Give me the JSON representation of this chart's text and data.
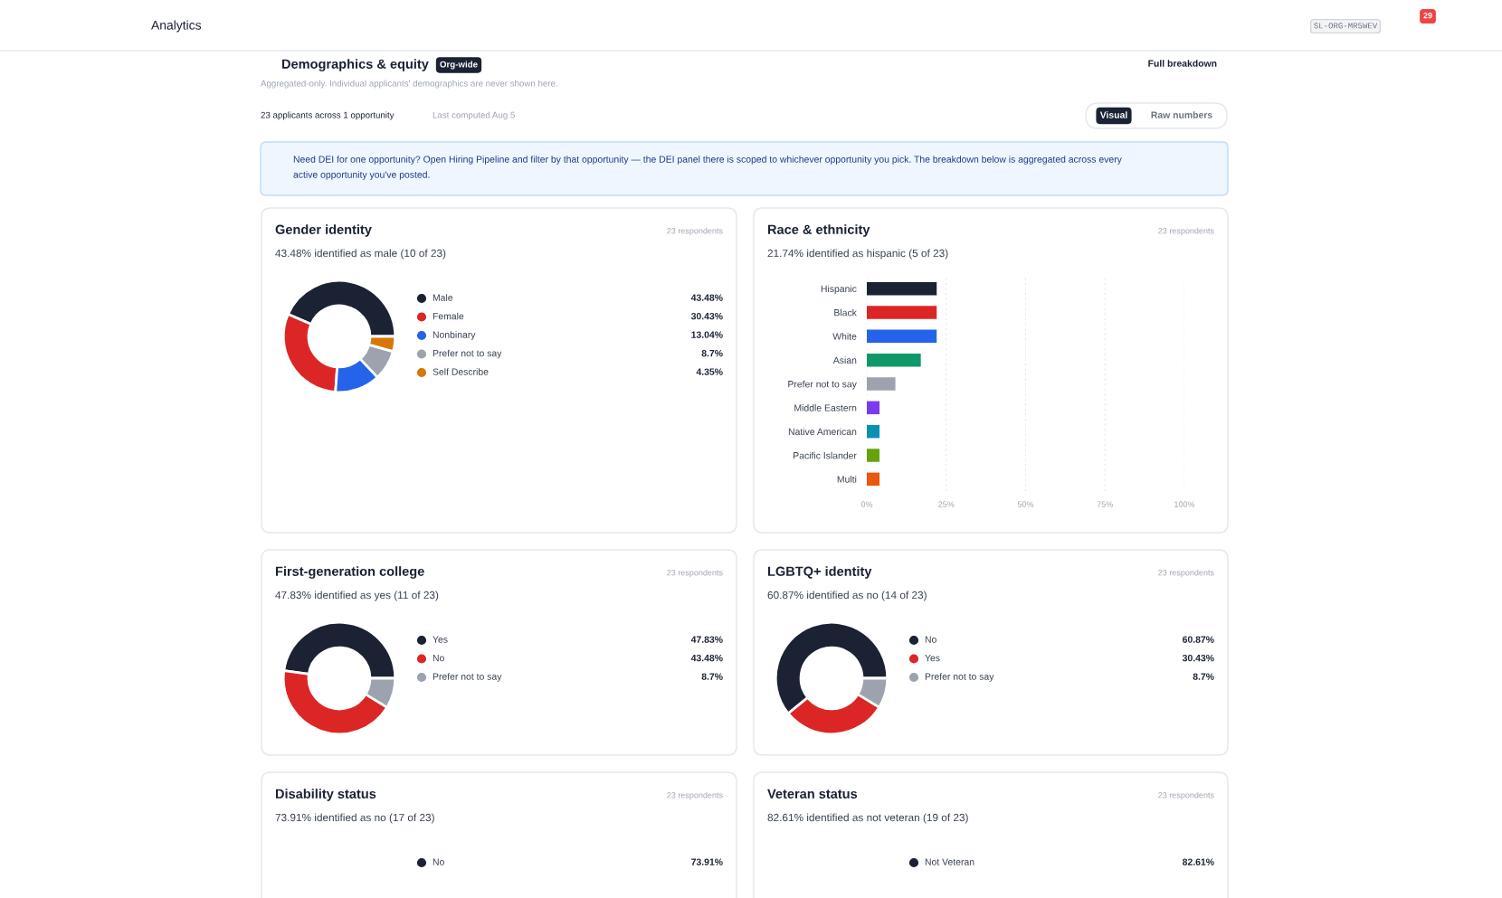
{
  "chart_data": [
    {
      "type": "other",
      "title": "Demographics & equity",
      "annotations": [
        "Analytics",
        "SL-ORG-MR5WEV",
        "29",
        "Org-wide",
        "Full breakdown",
        "Aggregated-only. Individual applicants' demographics are never shown here.",
        "23 applicants across 1 opportunity",
        "Last computed Aug 5",
        "Visual",
        "Raw numbers",
        "Need DEI for one opportunity? Open Hiring Pipeline and filter by that opportunity — the DEI panel there is scoped to whichever opportunity you pick. The breakdown below is aggregated across every",
        "active opportunity you've posted."
      ]
    },
    {
      "type": "donut",
      "title": "Gender identity",
      "subtitle": "43.48% identified as male (10 of 23)",
      "annotations": [
        "23 respondents"
      ],
      "categories": [
        "Male",
        "Female",
        "Nonbinary",
        "Prefer not to say",
        "Self Describe"
      ],
      "values": [
        43.48,
        30.43,
        13.04,
        8.7,
        4.35
      ],
      "colors": [
        "#1a2233",
        "#dc2626",
        "#2563eb",
        "#9ca3af",
        "#d97706"
      ],
      "value_labels": [
        "43.48%",
        "30.43%",
        "13.04%",
        "8.7%",
        "4.35%"
      ],
      "legend": "right"
    },
    {
      "type": "bar",
      "orientation": "horizontal",
      "title": "Race & ethnicity",
      "subtitle": "21.74% identified as hispanic (5 of 23)",
      "annotations": [
        "23 respondents"
      ],
      "categories": [
        "Hispanic",
        "Black",
        "White",
        "Asian",
        "Prefer not to say",
        "Middle Eastern",
        "Native American",
        "Pacific Islander",
        "Multi"
      ],
      "values": [
        22,
        22,
        22,
        17,
        9,
        4,
        4,
        4,
        4
      ],
      "colors": [
        "#1a2233",
        "#dc2626",
        "#2563eb",
        "#109868",
        "#9ca3af",
        "#7c3aed",
        "#0891b2",
        "#65a30d",
        "#ea580c"
      ],
      "xlim": [
        0,
        100
      ],
      "xticks": [
        {
          "value": 0,
          "label": "0%"
        },
        {
          "value": 25,
          "label": "25%"
        },
        {
          "value": 50,
          "label": "50%"
        },
        {
          "value": 75,
          "label": "75%"
        },
        {
          "value": 100,
          "label": "100%"
        }
      ],
      "grid": "x"
    },
    {
      "type": "donut",
      "title": "First-generation college",
      "subtitle": "47.83% identified as yes (11 of 23)",
      "annotations": [
        "23 respondents"
      ],
      "categories": [
        "Yes",
        "No",
        "Prefer not to say"
      ],
      "values": [
        47.83,
        43.48,
        8.7
      ],
      "colors": [
        "#1a2233",
        "#dc2626",
        "#9ca3af"
      ],
      "value_labels": [
        "47.83%",
        "43.48%",
        "8.7%"
      ],
      "legend": "right"
    },
    {
      "type": "donut",
      "title": "LGBTQ+ identity",
      "subtitle": "60.87% identified as no (14 of 23)",
      "annotations": [
        "23 respondents"
      ],
      "categories": [
        "No",
        "Yes",
        "Prefer not to say"
      ],
      "values": [
        60.87,
        30.43,
        8.7
      ],
      "colors": [
        "#1a2233",
        "#dc2626",
        "#9ca3af"
      ],
      "value_labels": [
        "60.87%",
        "30.43%",
        "8.7%"
      ],
      "legend": "right"
    },
    {
      "type": "other",
      "title": "Disability status",
      "subtitle": "73.91% identified as no (17 of 23)",
      "annotations": [
        "23 respondents",
        "No",
        "73.91%"
      ]
    },
    {
      "type": "other",
      "title": "Veteran status",
      "subtitle": "82.61% identified as not veteran (19 of 23)",
      "annotations": [
        "23 respondents",
        "Not Veteran",
        "82.61%"
      ]
    }
  ]
}
